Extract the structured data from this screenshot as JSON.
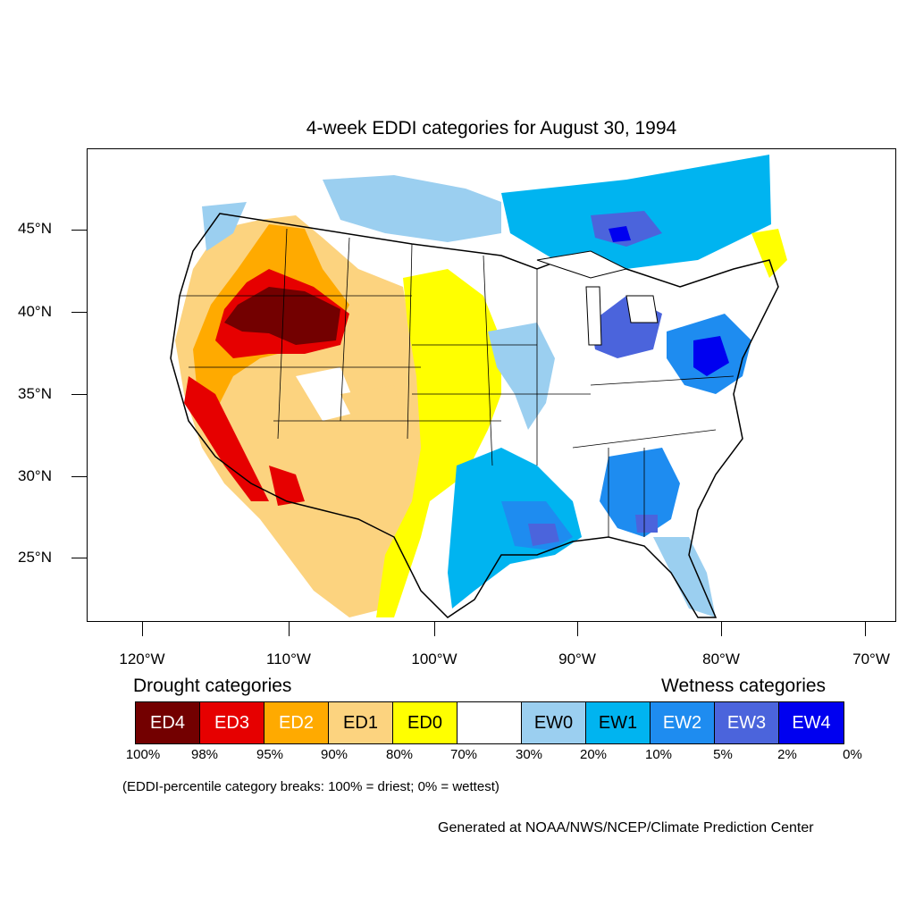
{
  "title": "4-week EDDI categories for August 30, 1994",
  "axes": {
    "lat_labels": [
      "45°N",
      "40°N",
      "35°N",
      "30°N",
      "25°N"
    ],
    "lon_labels": [
      "120°W",
      "110°W",
      "100°W",
      "90°W",
      "80°W",
      "70°W"
    ]
  },
  "legend": {
    "drought_heading": "Drought categories",
    "wetness_heading": "Wetness categories",
    "categories": [
      {
        "label": "ED4",
        "color": "#730000",
        "text_color": "#ffffff"
      },
      {
        "label": "ED3",
        "color": "#e60000",
        "text_color": "#ffffff"
      },
      {
        "label": "ED2",
        "color": "#ffaa00",
        "text_color": "#ffffff"
      },
      {
        "label": "ED1",
        "color": "#fcd37f",
        "text_color": "#000000"
      },
      {
        "label": "ED0",
        "color": "#ffff00",
        "text_color": "#000000"
      },
      {
        "label": "",
        "color": "#ffffff",
        "text_color": "#000000"
      },
      {
        "label": "EW0",
        "color": "#9bcff0",
        "text_color": "#000000"
      },
      {
        "label": "EW1",
        "color": "#00b4f0",
        "text_color": "#000000"
      },
      {
        "label": "EW2",
        "color": "#1e8cf0",
        "text_color": "#ffffff"
      },
      {
        "label": "EW3",
        "color": "#4b64dc",
        "text_color": "#ffffff"
      },
      {
        "label": "EW4",
        "color": "#0000f0",
        "text_color": "#ffffff"
      }
    ],
    "breaks": [
      "100%",
      "98%",
      "95%",
      "90%",
      "80%",
      "70%",
      "30%",
      "20%",
      "10%",
      "5%",
      "2%",
      "0%"
    ]
  },
  "note": "(EDDI-percentile category breaks: 100% = driest; 0% = wettest)",
  "credit": "Generated at NOAA/NWS/NCEP/Climate Prediction Center"
}
